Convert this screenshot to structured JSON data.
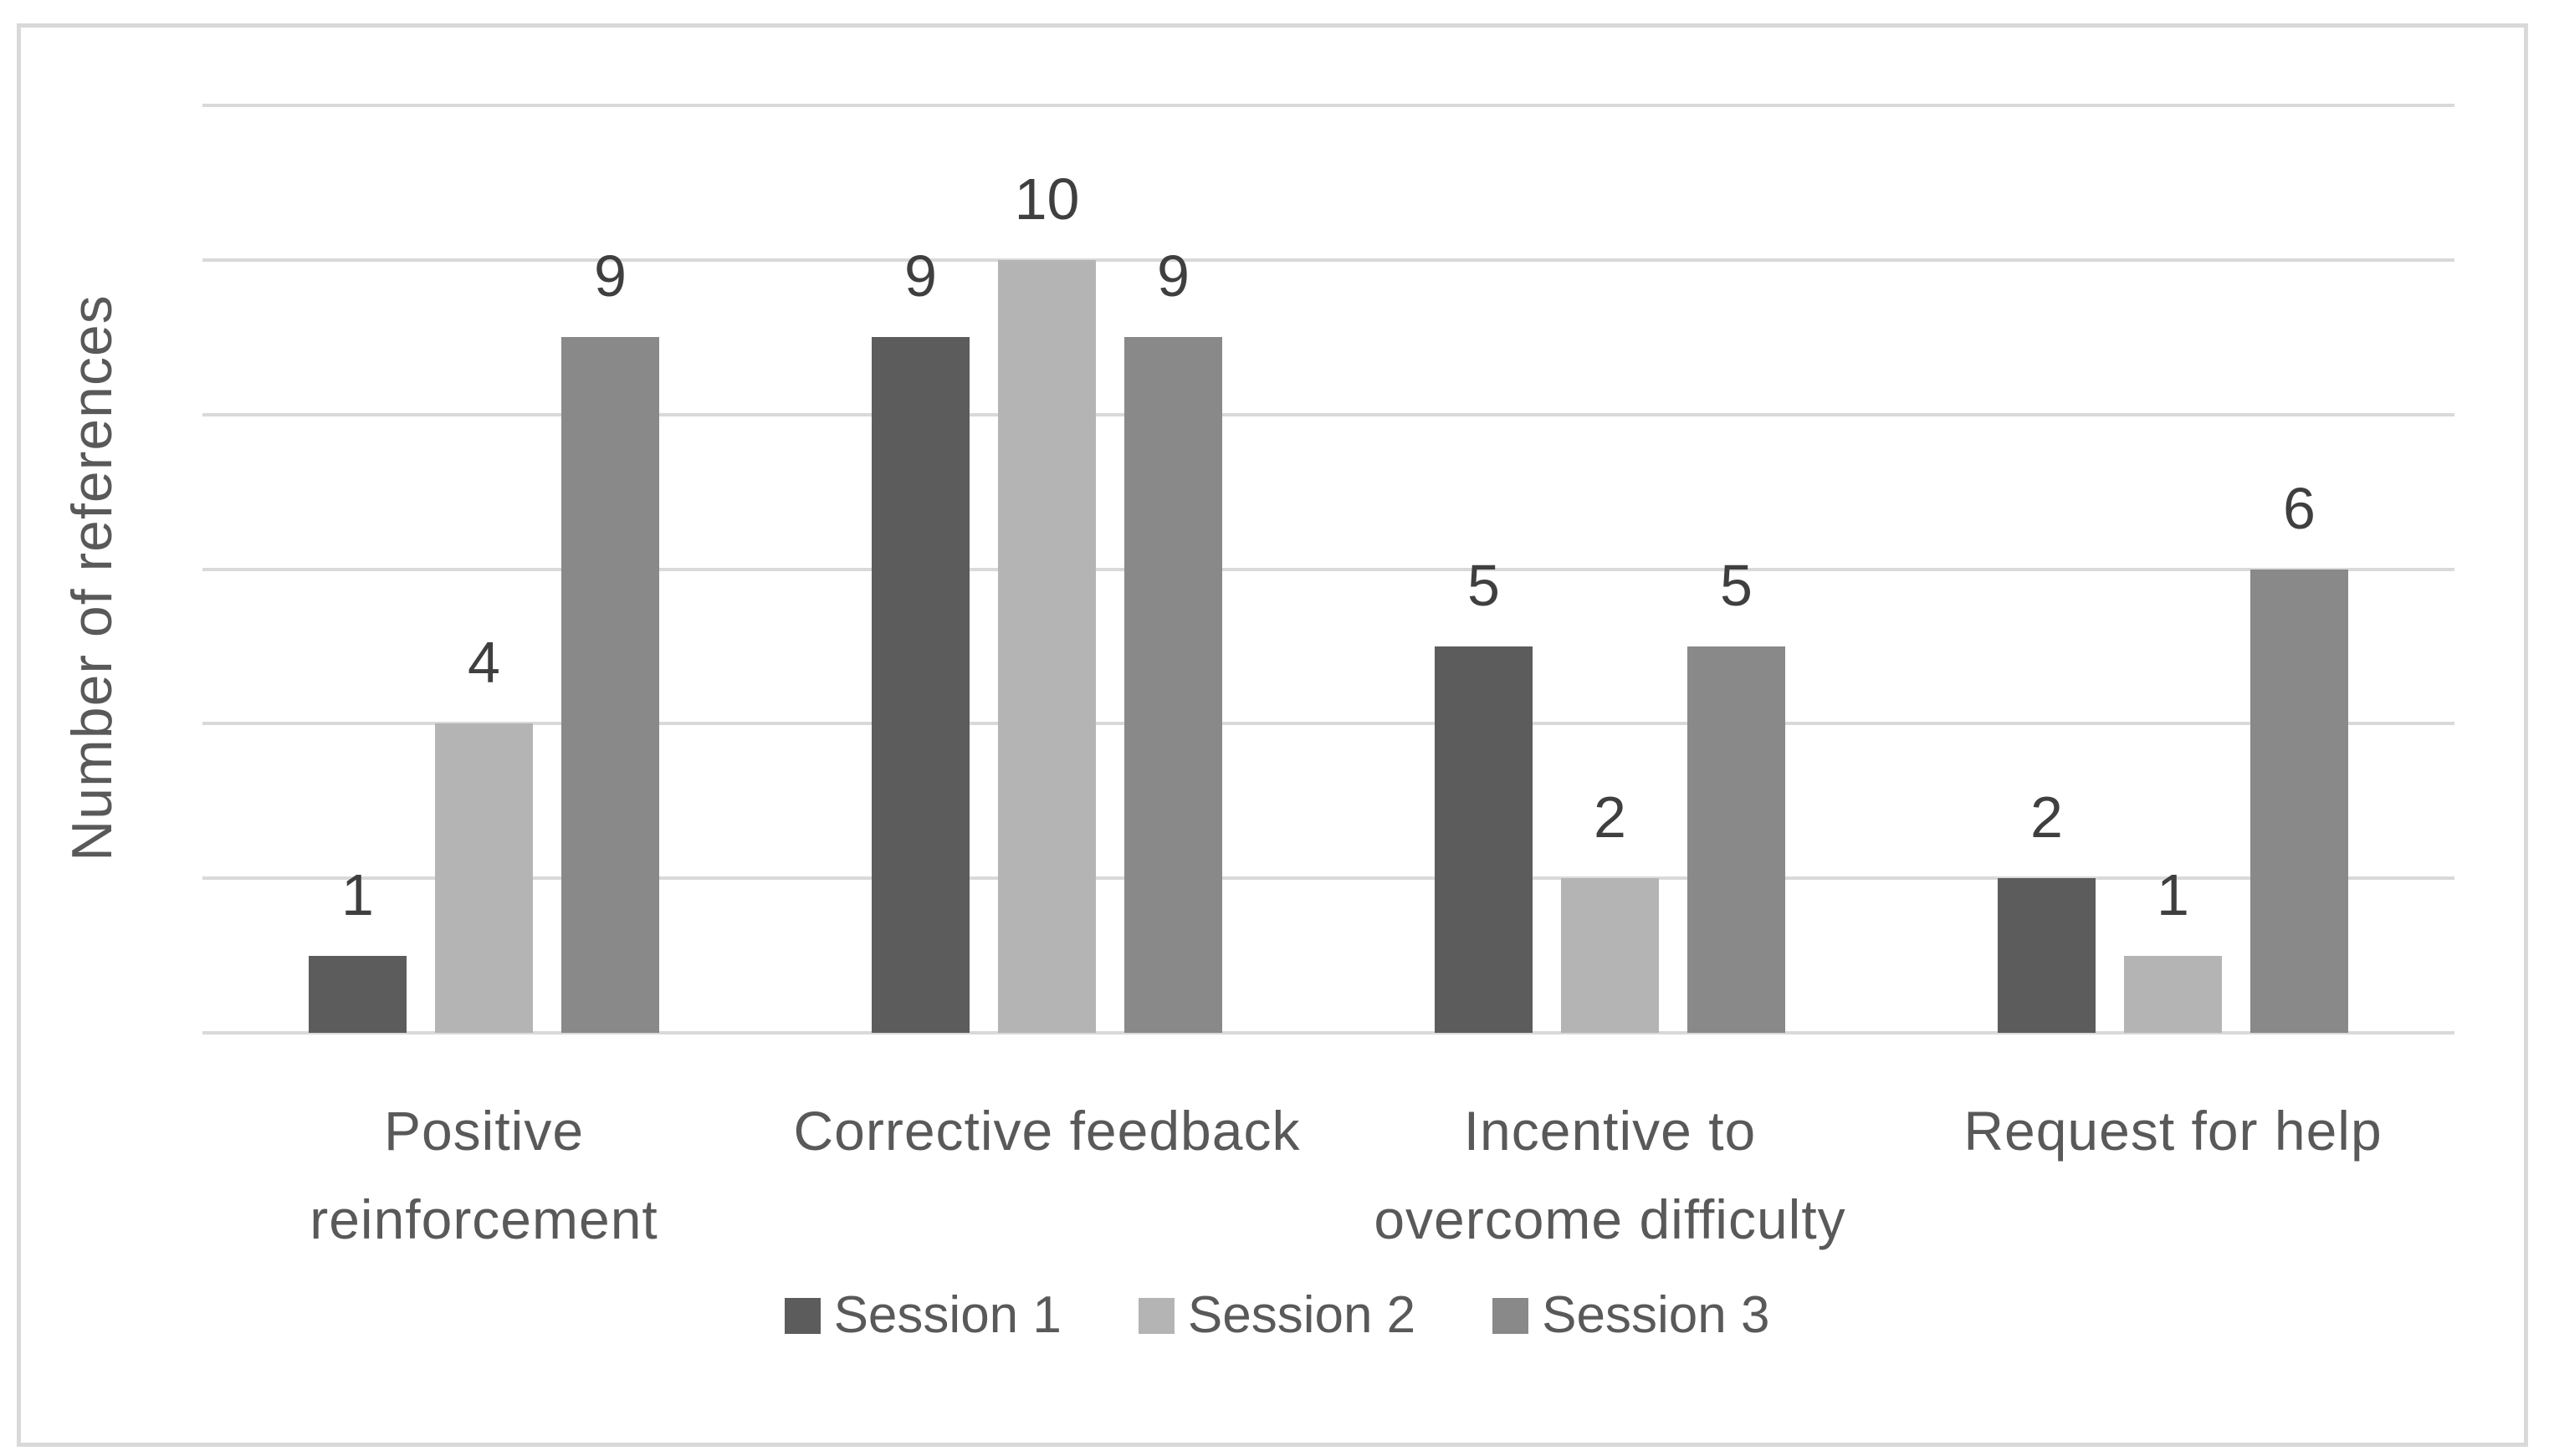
{
  "figure": {
    "background_color": "#ffffff",
    "frame_color": "#d9d9d9"
  },
  "chart_data": {
    "type": "bar",
    "title": "",
    "xlabel": "",
    "ylabel": "Number of references",
    "categories": [
      "Positive\nreinforcement",
      "Corrective feedback",
      "Incentive to\novercome difficulty",
      "Request for help"
    ],
    "series": [
      {
        "name": "Session 1",
        "color": "#5d5c5c",
        "values": [
          1,
          9,
          5,
          2
        ]
      },
      {
        "name": "Session 2",
        "color": "#b5b4b4",
        "values": [
          4,
          10,
          2,
          1
        ]
      },
      {
        "name": "Session 3",
        "color": "#8a8989",
        "values": [
          9,
          9,
          5,
          6
        ]
      }
    ],
    "ylim": [
      0,
      12
    ],
    "grid_step": 2,
    "grid": true,
    "y_tick_labels_visible": false,
    "data_labels_visible": true,
    "legend_position": "bottom",
    "gridline_color": "#d9d9d9",
    "axis_label_color": "#595959",
    "category_label_color": "#595959",
    "value_label_color": "#3f3f3f"
  }
}
